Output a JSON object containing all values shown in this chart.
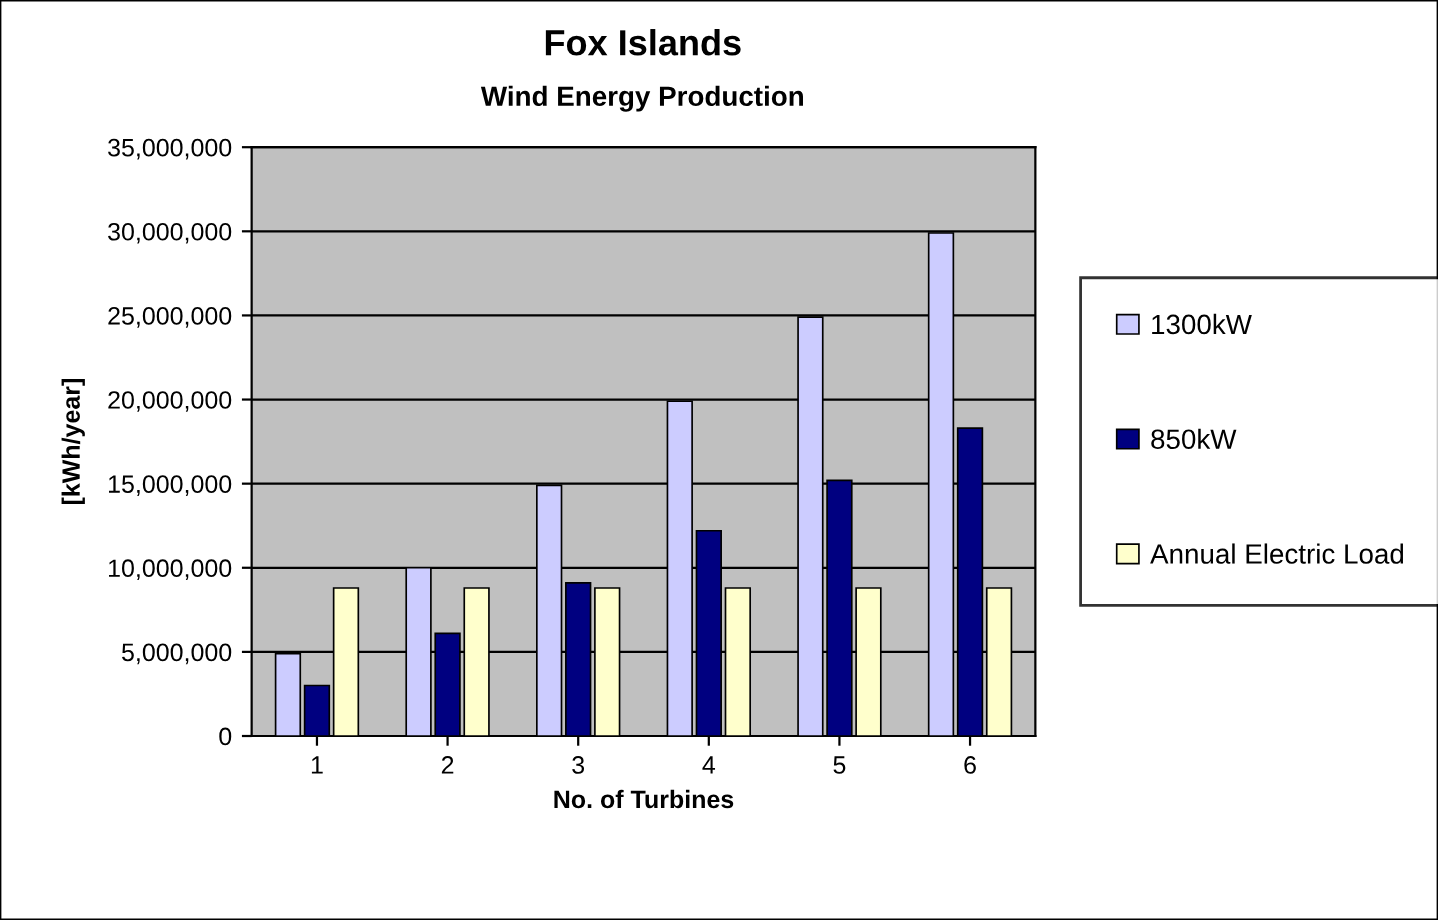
{
  "chart_data": {
    "type": "bar",
    "title": "Fox Islands",
    "subtitle": "Wind Energy Production",
    "xlabel": "No. of Turbines",
    "ylabel": "[kWh/year]",
    "categories": [
      "1",
      "2",
      "3",
      "4",
      "5",
      "6"
    ],
    "series": [
      {
        "name": "1300kW",
        "color": "#ccccff",
        "values": [
          4900000,
          10000000,
          14900000,
          19900000,
          24900000,
          29900000
        ]
      },
      {
        "name": "850kW",
        "color": "#000080",
        "values": [
          3000000,
          6100000,
          9100000,
          12200000,
          15200000,
          18300000
        ]
      },
      {
        "name": "Annual Electric Load",
        "color": "#ffffcc",
        "values": [
          8800000,
          8800000,
          8800000,
          8800000,
          8800000,
          8800000
        ]
      }
    ],
    "ylim": [
      0,
      35000000
    ],
    "yticks": [
      {
        "value": 0,
        "label": "0"
      },
      {
        "value": 5000000,
        "label": "5,000,000"
      },
      {
        "value": 10000000,
        "label": "10,000,000"
      },
      {
        "value": 15000000,
        "label": "15,000,000"
      },
      {
        "value": 20000000,
        "label": "20,000,000"
      },
      {
        "value": 25000000,
        "label": "25,000,000"
      },
      {
        "value": 30000000,
        "label": "30,000,000"
      },
      {
        "value": 35000000,
        "label": "35,000,000"
      }
    ],
    "grid": "y",
    "legend": "right"
  }
}
